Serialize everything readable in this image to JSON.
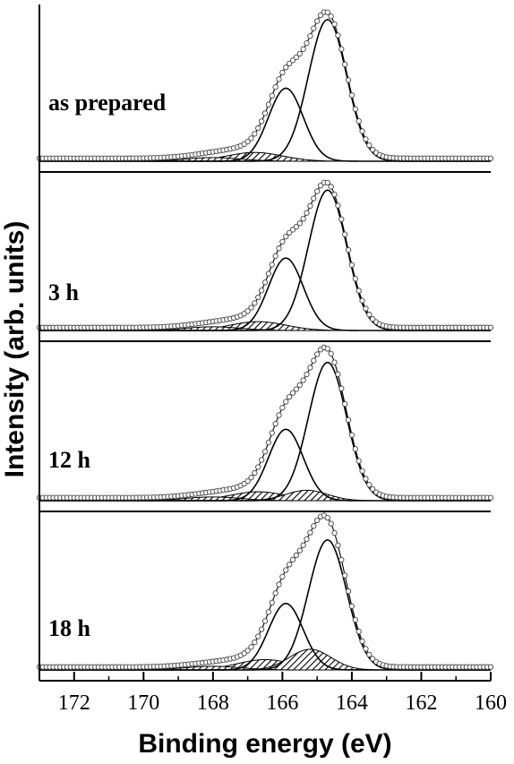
{
  "chart_data": {
    "type": "line",
    "xlabel": "Binding energy (eV)",
    "ylabel": "Intensity (arb. units)",
    "xlim": [
      173,
      160
    ],
    "x_reversed": true,
    "xticks": [
      172,
      170,
      168,
      166,
      164,
      162,
      160
    ],
    "grid": false,
    "legend": "none",
    "panels": [
      {
        "label": "as prepared",
        "baseline": 0.02,
        "data_peak_max": 1.0,
        "series": [
          {
            "kind": "component",
            "center": 164.7,
            "height": 0.97,
            "width": 0.55,
            "hatched": false
          },
          {
            "kind": "component",
            "center": 165.9,
            "height": 0.5,
            "width": 0.5,
            "hatched": false
          },
          {
            "kind": "component",
            "center": 166.8,
            "height": 0.06,
            "width": 0.8,
            "hatched": true
          },
          {
            "kind": "component",
            "center": 168.0,
            "height": 0.025,
            "width": 0.8,
            "hatched": true
          }
        ]
      },
      {
        "label": "3 h",
        "baseline": 0.02,
        "data_peak_max": 1.0,
        "series": [
          {
            "kind": "component",
            "center": 164.7,
            "height": 0.95,
            "width": 0.55,
            "hatched": false
          },
          {
            "kind": "component",
            "center": 165.9,
            "height": 0.49,
            "width": 0.5,
            "hatched": false
          },
          {
            "kind": "component",
            "center": 166.7,
            "height": 0.06,
            "width": 0.8,
            "hatched": true
          },
          {
            "kind": "component",
            "center": 168.0,
            "height": 0.025,
            "width": 0.8,
            "hatched": true
          }
        ]
      },
      {
        "label": "12 h",
        "baseline": 0.02,
        "data_peak_max": 1.0,
        "series": [
          {
            "kind": "component",
            "center": 164.7,
            "height": 0.93,
            "width": 0.55,
            "hatched": false
          },
          {
            "kind": "component",
            "center": 165.9,
            "height": 0.48,
            "width": 0.5,
            "hatched": false
          },
          {
            "kind": "component",
            "center": 166.7,
            "height": 0.06,
            "width": 0.8,
            "hatched": true
          },
          {
            "kind": "component",
            "center": 165.3,
            "height": 0.07,
            "width": 0.6,
            "hatched": true
          },
          {
            "kind": "component",
            "center": 168.0,
            "height": 0.025,
            "width": 0.8,
            "hatched": true
          }
        ]
      },
      {
        "label": "18 h",
        "baseline": 0.02,
        "data_peak_max": 1.0,
        "series": [
          {
            "kind": "component",
            "center": 164.7,
            "height": 0.88,
            "width": 0.55,
            "hatched": false
          },
          {
            "kind": "component",
            "center": 165.9,
            "height": 0.45,
            "width": 0.5,
            "hatched": false
          },
          {
            "kind": "component",
            "center": 166.5,
            "height": 0.07,
            "width": 0.8,
            "hatched": true
          },
          {
            "kind": "component",
            "center": 165.2,
            "height": 0.14,
            "width": 0.6,
            "hatched": true
          },
          {
            "kind": "component",
            "center": 168.0,
            "height": 0.025,
            "width": 0.8,
            "hatched": true
          }
        ]
      }
    ]
  }
}
